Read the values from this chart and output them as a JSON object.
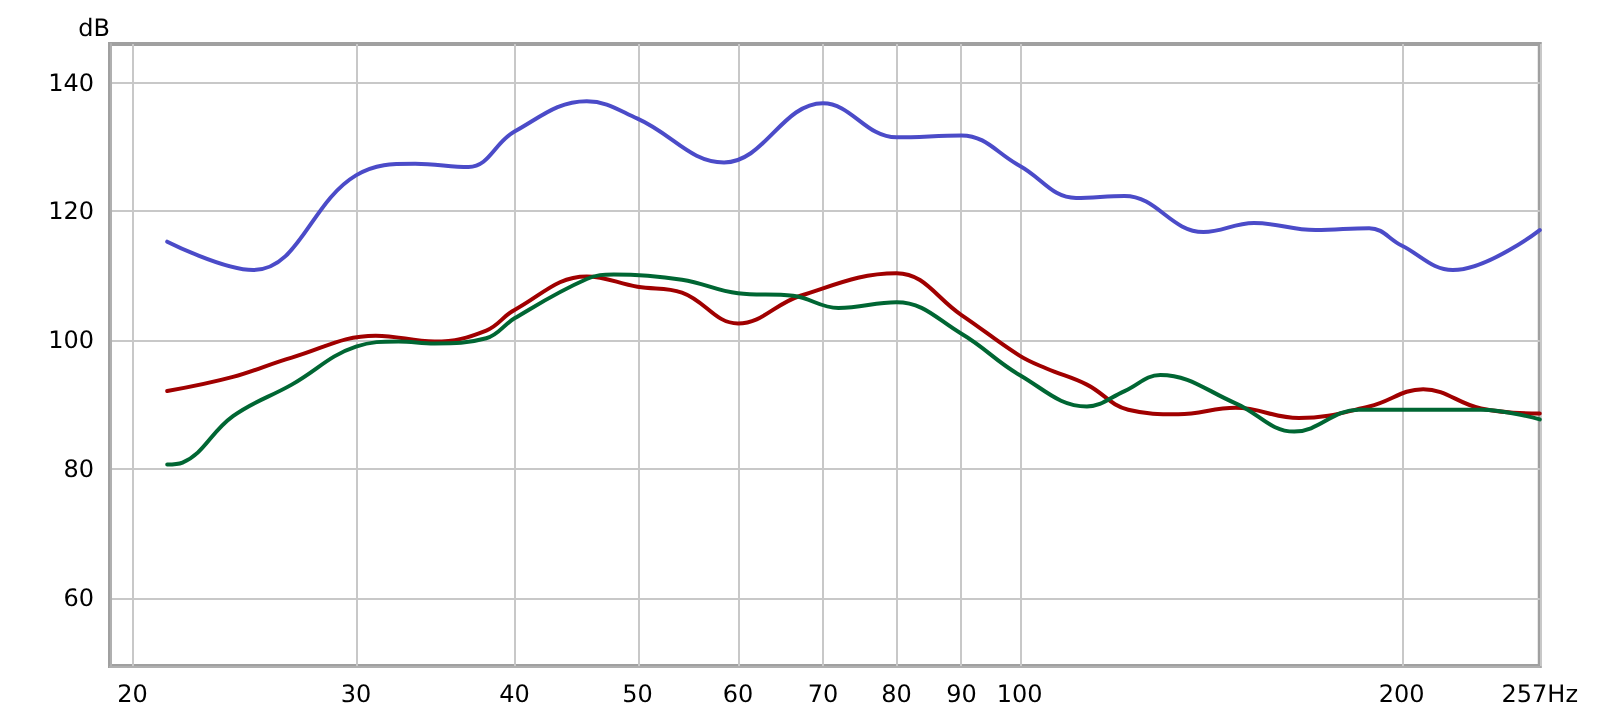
{
  "chart_data": {
    "type": "line",
    "ylabel": "dB",
    "log": "x",
    "xlim": [
      19.2,
      257
    ],
    "ylim": [
      49.4,
      146
    ],
    "xticks": [
      20,
      30,
      40,
      50,
      60,
      70,
      80,
      90,
      100,
      200,
      {
        "value": 257,
        "label": "257Hz"
      }
    ],
    "yticks": [
      60,
      80,
      100,
      120,
      140
    ],
    "grid": true,
    "marker": "none",
    "line_style": "solid",
    "series": [
      {
        "color": "#4b4bc8",
        "x": [
          21.3,
          24.9,
          30,
          33.4,
          36.8,
          40,
          45.6,
          50,
          58.5,
          70,
          80,
          90,
          100,
          110.8,
          121,
          139.6,
          153,
          171.1,
          188.6,
          200,
          219.5,
          257
        ],
        "values": [
          115.3,
          110.9,
          125.6,
          127.4,
          126.9,
          132.4,
          137.1,
          134.4,
          127.6,
          136.8,
          131.5,
          131.8,
          127.1,
          122.1,
          122.4,
          116.8,
          118.2,
          117.1,
          117.4,
          114.7,
          110.9,
          117.1
        ]
      },
      {
        "color": "#a00000",
        "x": [
          21.3,
          24,
          26.7,
          31.1,
          34.6,
          38,
          40,
          45.6,
          50,
          54.2,
          60,
          67.2,
          80,
          90,
          100,
          105,
          113,
          121.8,
          133.4,
          148,
          166,
          188.6,
          208,
          231,
          257
        ],
        "values": [
          92.1,
          94.3,
          97.3,
          100.7,
          99.8,
          101.5,
          104.7,
          109.9,
          108.3,
          107.4,
          102.6,
          106.9,
          110.4,
          103.9,
          97.6,
          95.6,
          93.1,
          89.2,
          88.5,
          89.5,
          87.9,
          89.7,
          92.4,
          89.4,
          88.6
        ]
      },
      {
        "color": "#006633",
        "x": [
          21.3,
          21.9,
          24,
          26.7,
          30,
          32.4,
          34.6,
          38,
          40,
          45.6,
          47.9,
          54.2,
          60,
          66.3,
          72,
          80,
          90,
          100,
          113,
          121,
          129.1,
          148,
          164.6,
          185,
          200,
          231,
          257
        ],
        "values": [
          80.7,
          81,
          88.2,
          93.1,
          99,
          99.8,
          99.5,
          100.3,
          103.4,
          109.5,
          110.2,
          109.4,
          107.3,
          106.9,
          105,
          105.9,
          101,
          94.6,
          89.7,
          92.1,
          94.6,
          90.2,
          85.8,
          89.2,
          89.2,
          89.2,
          87.7
        ]
      }
    ]
  }
}
